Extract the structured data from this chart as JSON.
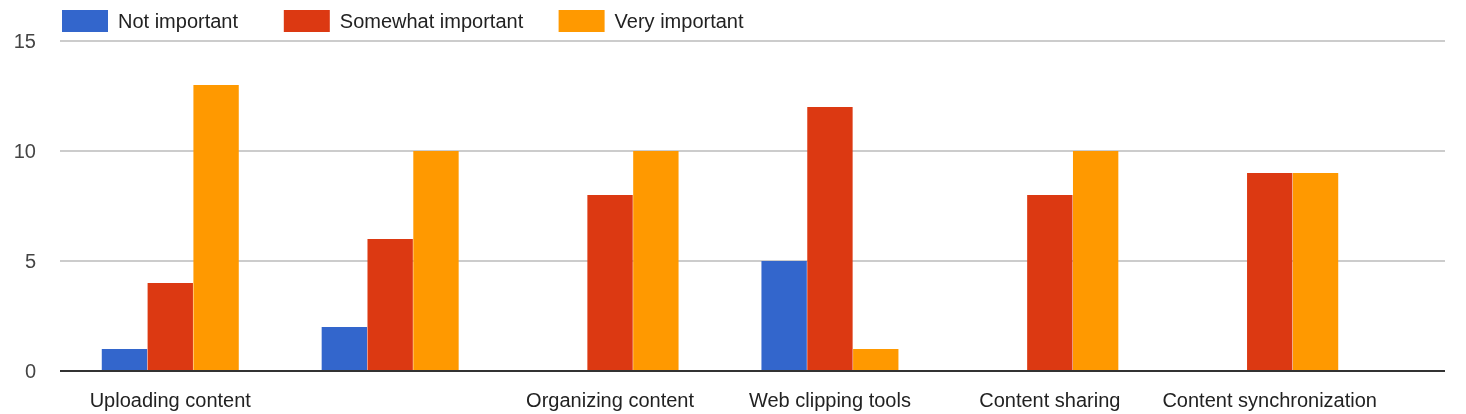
{
  "chart_data": {
    "type": "bar",
    "categories": [
      "Uploading content",
      null,
      "Organizing content",
      "Web clipping tools",
      "Content sharing",
      "Content synchronization"
    ],
    "series": [
      {
        "name": "Not important",
        "color": "#3366cc",
        "values": [
          1,
          2,
          0,
          5,
          0,
          0
        ]
      },
      {
        "name": "Somewhat important",
        "color": "#dc3912",
        "values": [
          4,
          6,
          8,
          12,
          8,
          9
        ]
      },
      {
        "name": "Very important",
        "color": "#ff9900",
        "values": [
          13,
          10,
          10,
          1,
          10,
          9
        ]
      }
    ],
    "ylim": [
      0,
      15
    ],
    "yticks": [
      0,
      5,
      10,
      15
    ],
    "grid": "y",
    "legend": "top left"
  }
}
